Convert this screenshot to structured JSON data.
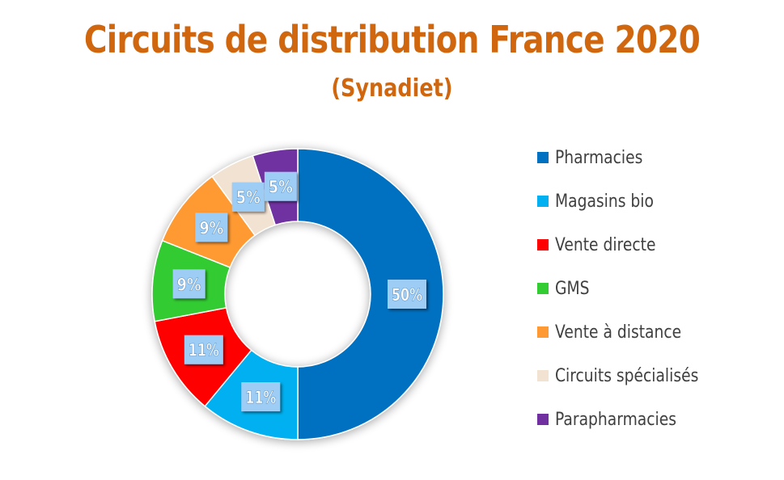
{
  "chart_data": {
    "type": "pie",
    "title": "Circuits de distribution France 2020",
    "subtitle": "(Synadiet)",
    "legend_position": "right",
    "categories": [
      "Pharmacies",
      "Magasins bio",
      "Vente directe",
      "GMS",
      "Vente à distance",
      "Circuits spécialisés",
      "Parapharmacies"
    ],
    "values": [
      50,
      11,
      11,
      9,
      9,
      5,
      5
    ],
    "labels": [
      "50%",
      "11%",
      "11%",
      "9%",
      "9%",
      "5%",
      "5%"
    ],
    "colors": [
      "#0070c0",
      "#00b0f0",
      "#ff0000",
      "#33cc33",
      "#ff9933",
      "#f2e2d2",
      "#7030a0"
    ]
  }
}
